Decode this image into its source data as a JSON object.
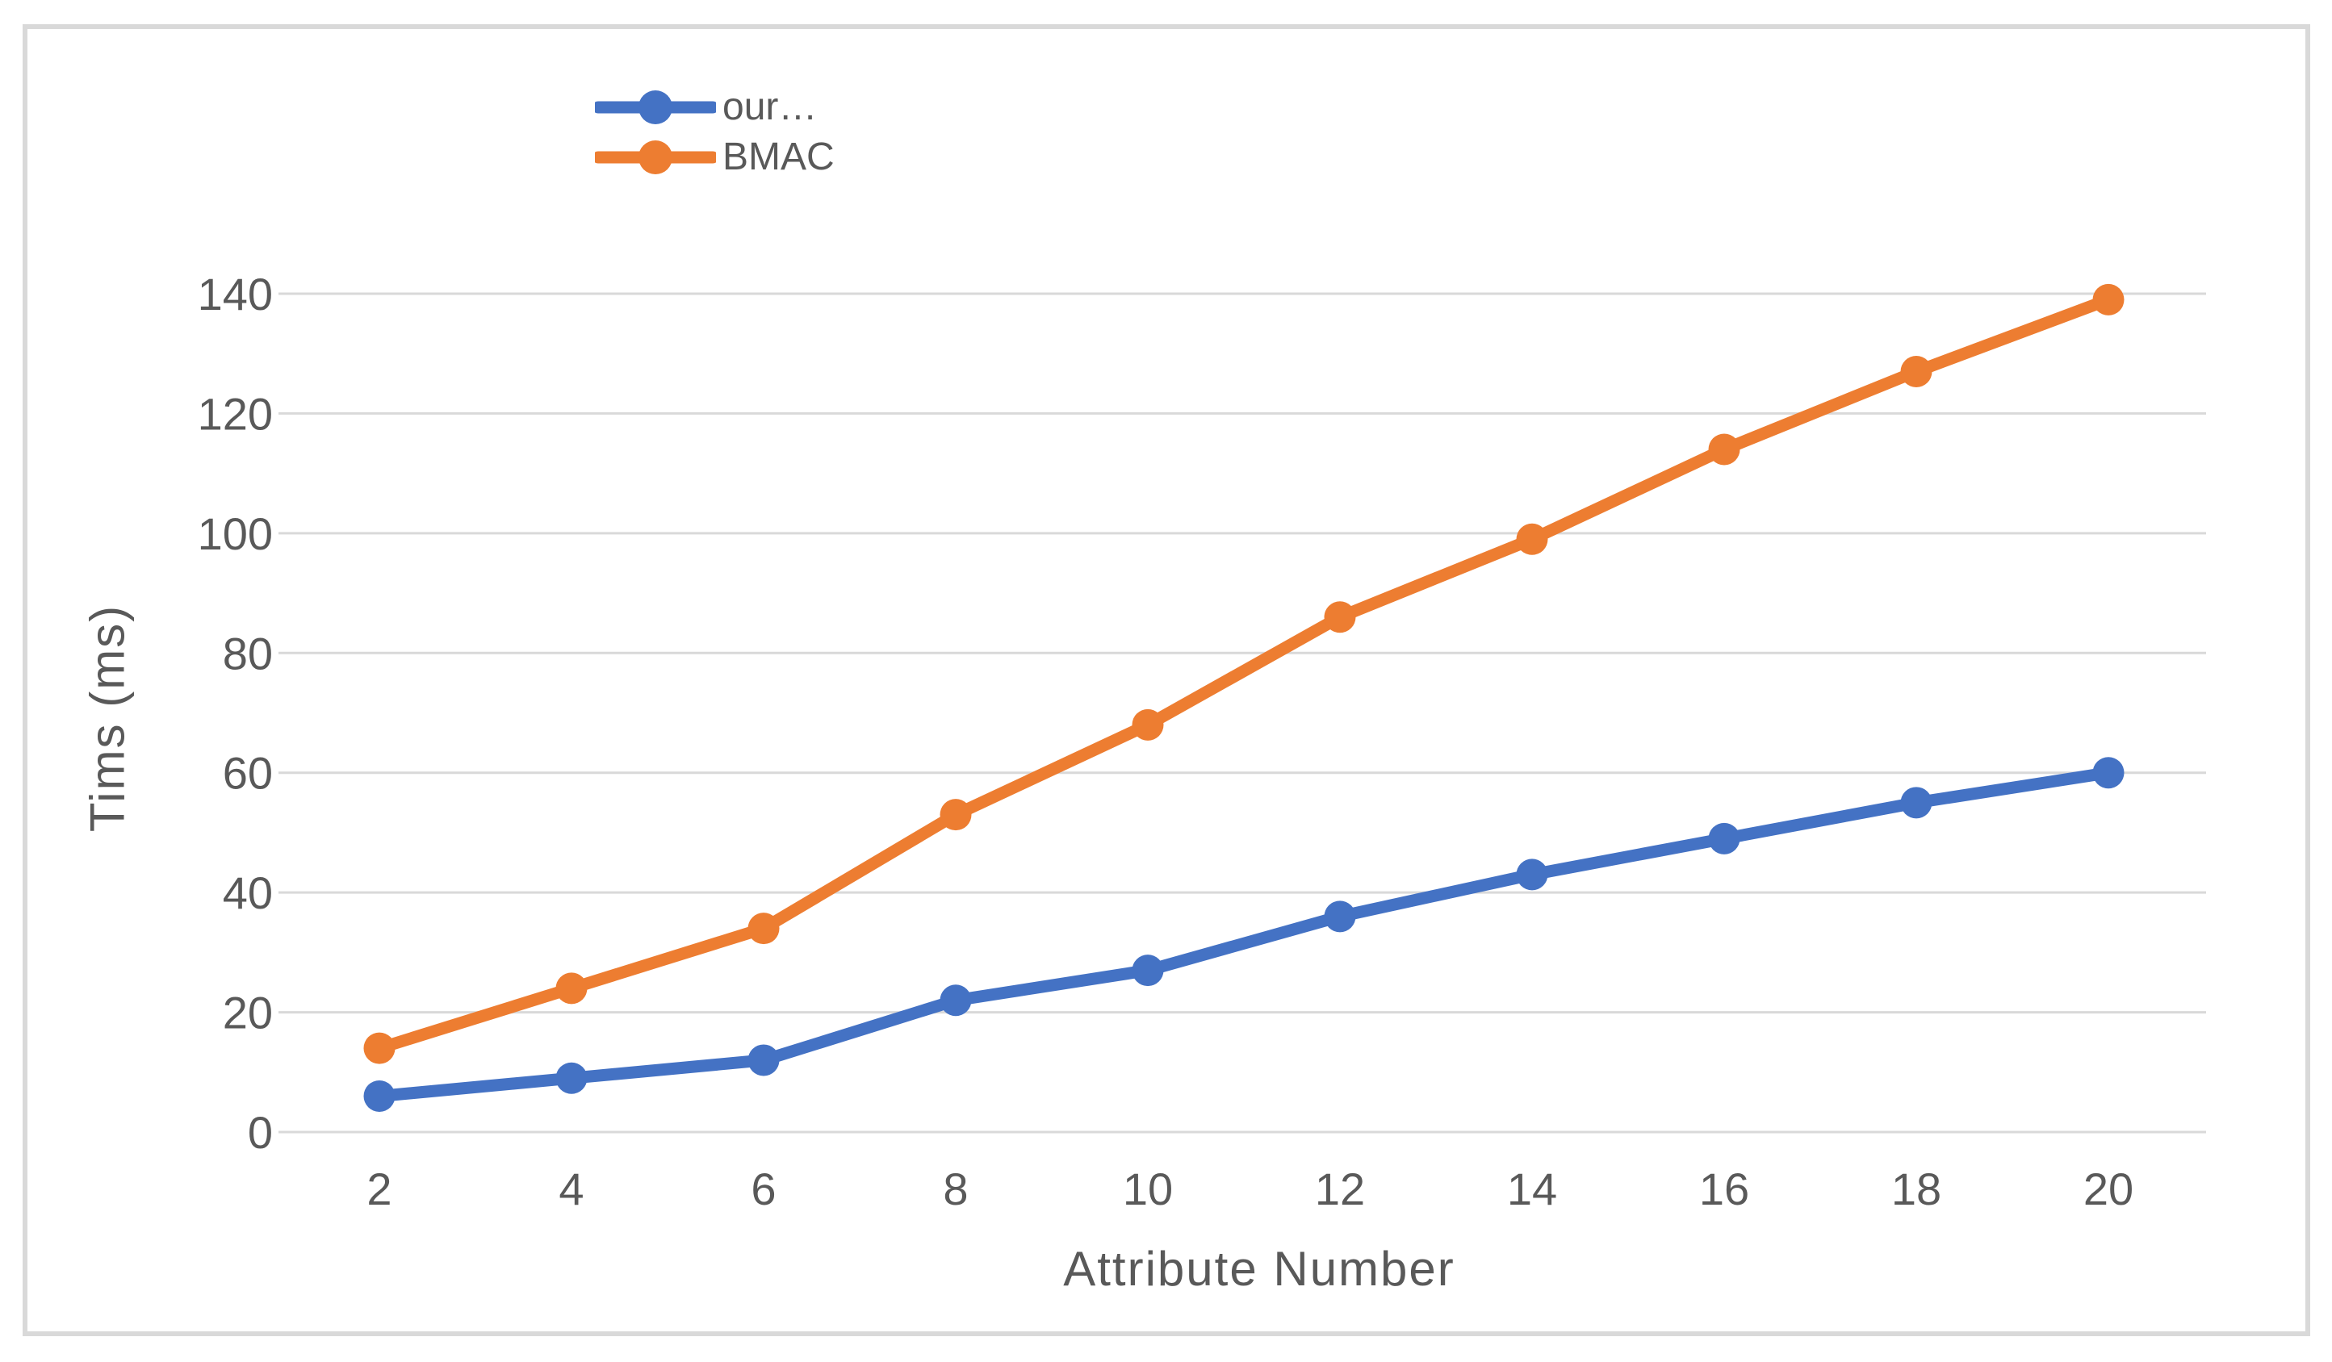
{
  "frame": {
    "border_color": "#D9D9D9",
    "background": "#FFFFFF"
  },
  "x_axis": {
    "title": "Attribute Number",
    "tick_labels": [
      "2",
      "4",
      "6",
      "8",
      "10",
      "12",
      "14",
      "16",
      "18",
      "20"
    ]
  },
  "y_axis": {
    "title": "Tims (ms)",
    "tick_labels": [
      "0",
      "20",
      "40",
      "60",
      "80",
      "100",
      "120",
      "140"
    ]
  },
  "chart_data": {
    "type": "line",
    "title": "",
    "xlabel": "Attribute Number",
    "ylabel": "Tims (ms)",
    "x": [
      2,
      4,
      6,
      8,
      10,
      12,
      14,
      16,
      18,
      20
    ],
    "y_ticks": [
      0,
      20,
      40,
      60,
      80,
      100,
      120,
      140
    ],
    "ylim": [
      0,
      140
    ],
    "grid": true,
    "legend_position": "top-center-inside",
    "series": [
      {
        "name": "our…",
        "color": "#4472C4",
        "marker": "circle",
        "values": [
          6,
          9,
          12,
          22,
          27,
          36,
          43,
          49,
          55,
          60
        ]
      },
      {
        "name": "BMAC",
        "color": "#ED7D31",
        "marker": "circle",
        "values": [
          14,
          24,
          34,
          53,
          68,
          86,
          99,
          114,
          127,
          139
        ]
      }
    ],
    "colors": {
      "gridline": "#D9D9D9",
      "text": "#595959"
    }
  }
}
